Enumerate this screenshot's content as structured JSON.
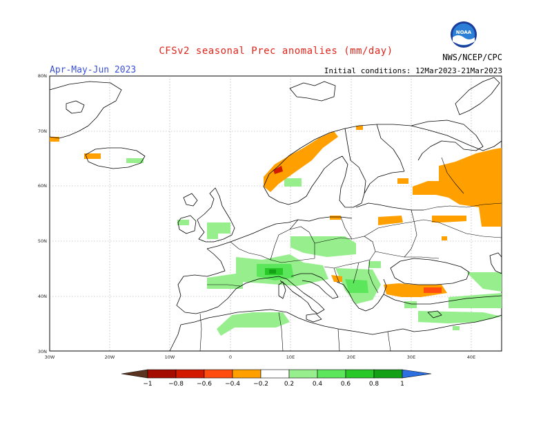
{
  "header": {
    "title": "CFSv2 seasonal Prec anomalies (mm/day)",
    "period": "Apr-May-Jun 2023",
    "initial_conditions": "Initial conditions: 12Mar2023-21Mar2023",
    "credit": "NWS/NCEP/CPC",
    "logo_text": "NOAA"
  },
  "map": {
    "lat_labels": [
      "80N",
      "70N",
      "60N",
      "50N",
      "40N",
      "30N"
    ],
    "lon_labels": [
      "30W",
      "20W",
      "10W",
      "0",
      "10E",
      "20E",
      "30E",
      "40E"
    ]
  },
  "colorbar": {
    "labels": [
      "−1",
      "−0.8",
      "−0.6",
      "−0.4",
      "−0.2",
      "0.2",
      "0.4",
      "0.6",
      "0.8",
      "1"
    ],
    "colors": [
      "#5c3320",
      "#a50c00",
      "#d11a00",
      "#ff4d10",
      "#ffa000",
      "#ffffff",
      "#96ee8c",
      "#5ce65c",
      "#28c828",
      "#14a014",
      "#2b6fe0"
    ]
  }
}
